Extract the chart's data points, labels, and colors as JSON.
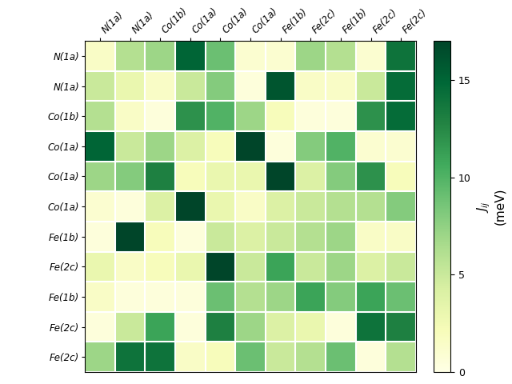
{
  "row_labels": [
    "N(1a)",
    "N(1a)",
    "Co(1b)",
    "Co(1a)",
    "Co(1a)",
    "Co(1a)",
    "Fe(1b)",
    "Fe(2c)",
    "Fe(1b)",
    "Fe(2c)",
    "Fe(2c)"
  ],
  "col_labels": [
    "N(1a)",
    "N(1a)",
    "Co(1b)",
    "Co(1a)",
    "Co(1a)",
    "Co(1a)",
    "Fe(1b)",
    "Fe(2c)",
    "Fe(1b)",
    "Fe(2c)",
    "Fe(2c)"
  ],
  "matrix": [
    [
      1.5,
      6.0,
      7.0,
      15.0,
      9.0,
      1.0,
      1.0,
      7.0,
      6.0,
      1.0,
      14.0
    ],
    [
      5.0,
      3.0,
      1.5,
      5.0,
      8.0,
      0.5,
      16.0,
      1.5,
      1.5,
      5.0,
      14.5
    ],
    [
      6.0,
      1.5,
      0.5,
      12.0,
      10.0,
      7.0,
      2.0,
      0.5,
      0.5,
      12.0,
      14.5
    ],
    [
      15.0,
      5.0,
      7.0,
      4.0,
      2.0,
      17.0,
      0.5,
      8.0,
      10.0,
      1.0,
      1.0
    ],
    [
      7.0,
      8.0,
      13.0,
      2.0,
      3.0,
      3.0,
      17.0,
      4.0,
      8.0,
      12.0,
      2.0
    ],
    [
      1.0,
      0.5,
      4.0,
      17.0,
      3.0,
      1.5,
      4.0,
      5.0,
      6.0,
      6.0,
      8.0
    ],
    [
      0.5,
      17.0,
      2.0,
      0.5,
      5.0,
      4.0,
      5.0,
      6.0,
      7.0,
      1.5,
      1.5
    ],
    [
      3.0,
      1.5,
      2.0,
      3.0,
      17.0,
      5.0,
      11.0,
      5.0,
      7.0,
      4.0,
      5.0
    ],
    [
      1.5,
      0.5,
      0.5,
      0.5,
      9.0,
      6.0,
      7.0,
      11.0,
      8.0,
      11.0,
      9.0
    ],
    [
      0.5,
      5.0,
      11.0,
      0.5,
      13.0,
      7.0,
      4.0,
      3.0,
      0.5,
      14.0,
      13.0
    ],
    [
      7.0,
      14.0,
      14.0,
      1.5,
      2.0,
      9.0,
      5.0,
      6.0,
      9.0,
      0.5,
      6.0
    ]
  ],
  "vmin": 0,
  "vmax": 17,
  "colormap": "YlGn",
  "cbar_label_line1": "$J_{ij}$",
  "cbar_label_line2": "(meV)",
  "cbar_ticks": [
    0,
    5,
    10,
    15
  ],
  "figsize": [
    6.4,
    4.8
  ],
  "dpi": 100
}
